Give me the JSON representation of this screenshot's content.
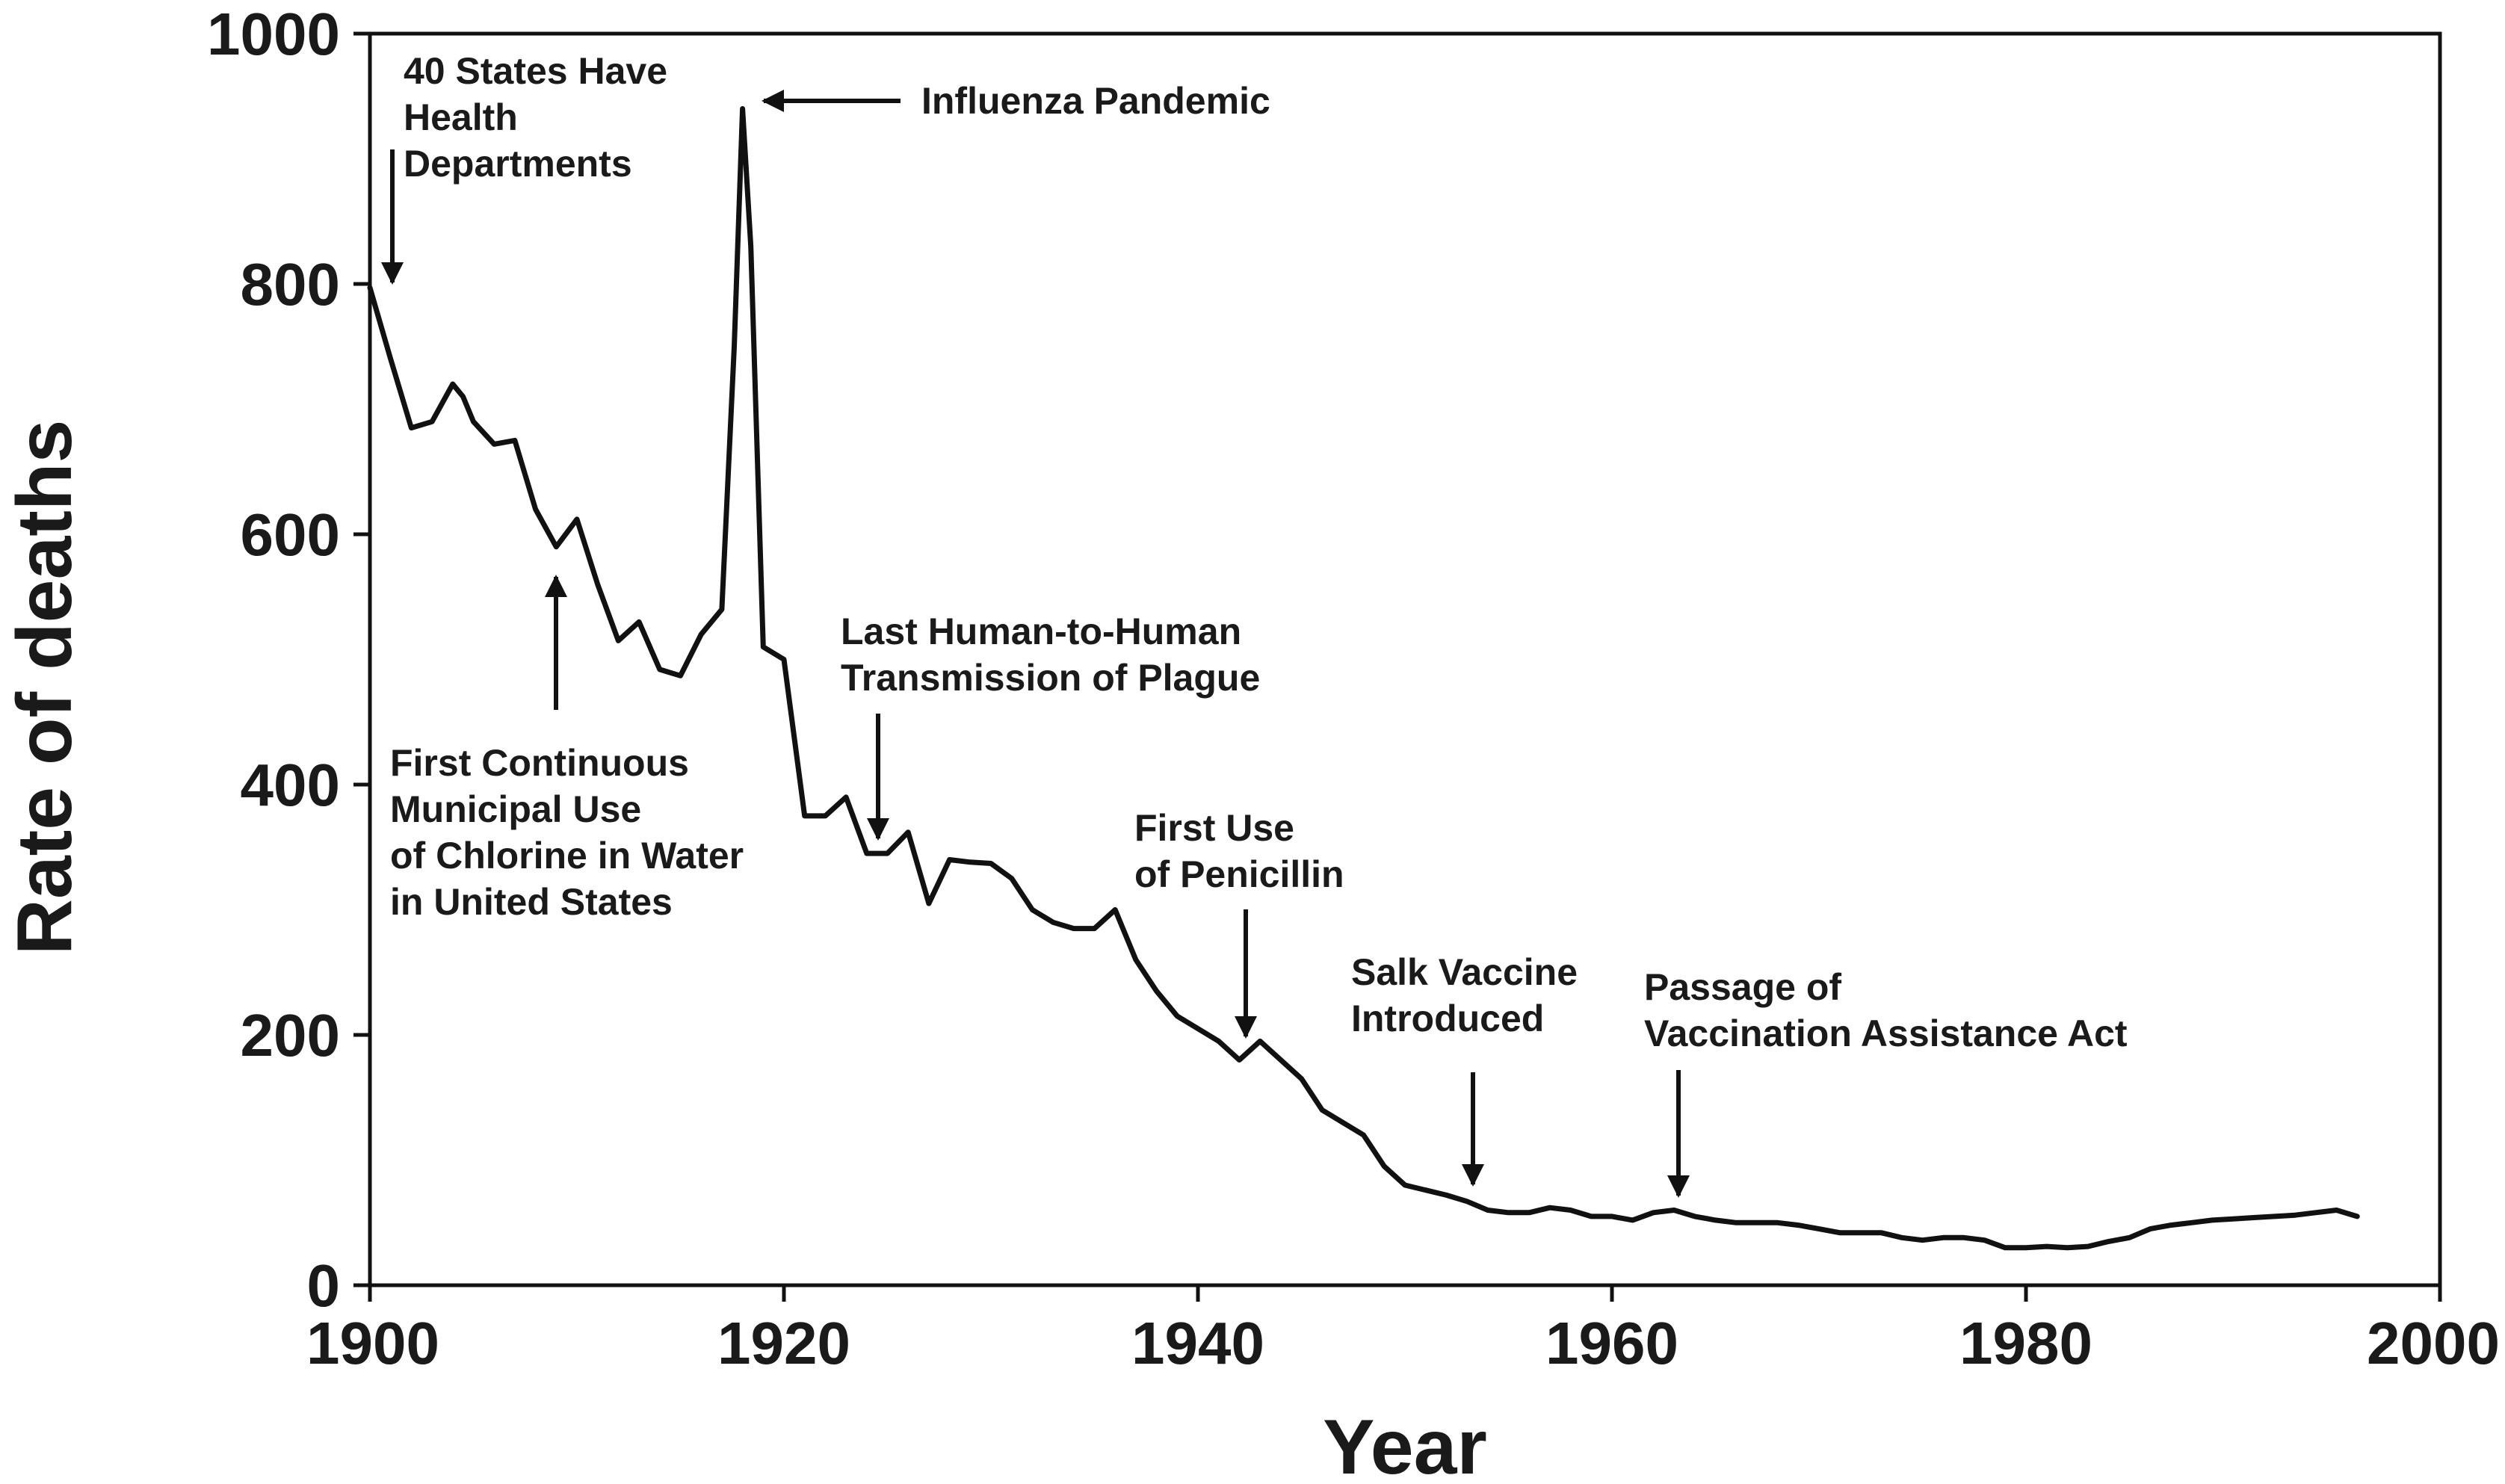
{
  "chart_data": {
    "type": "line",
    "title": "",
    "xlabel": "Year",
    "ylabel": "Rate of deaths",
    "xlim": [
      1900,
      2000
    ],
    "ylim": [
      0,
      1000
    ],
    "xticks": [
      1900,
      1920,
      1940,
      1960,
      1980,
      2000
    ],
    "yticks": [
      0,
      200,
      400,
      600,
      800,
      1000
    ],
    "grid": false,
    "legend": "none",
    "line_color": "#111111",
    "series": [
      {
        "x": [
          1900,
          1901,
          1902,
          1903,
          1904,
          1904.5,
          1905,
          1906,
          1907,
          1908,
          1909,
          1910,
          1911,
          1912,
          1913,
          1914,
          1915,
          1916,
          1917,
          1917.6,
          1918,
          1918.4,
          1919,
          1920,
          1921,
          1922,
          1923,
          1924,
          1925,
          1926,
          1927,
          1928,
          1929,
          1930,
          1931,
          1932,
          1933,
          1934,
          1935,
          1936,
          1937,
          1938,
          1939,
          1940,
          1941,
          1942,
          1943,
          1944,
          1945,
          1946,
          1947,
          1948,
          1949,
          1950,
          1951,
          1952,
          1953,
          1954,
          1955,
          1956,
          1957,
          1958,
          1959,
          1960,
          1961,
          1962,
          1963,
          1964,
          1965,
          1966,
          1967,
          1968,
          1969,
          1970,
          1971,
          1972,
          1973,
          1974,
          1975,
          1976,
          1977,
          1978,
          1979,
          1980,
          1981,
          1982,
          1983,
          1984,
          1985,
          1986,
          1987,
          1988,
          1989,
          1990,
          1991,
          1992,
          1993,
          1994,
          1995,
          1996
        ],
        "y": [
          797,
          740,
          685,
          690,
          720,
          710,
          690,
          672,
          675,
          620,
          590,
          612,
          560,
          515,
          530,
          492,
          487,
          520,
          540,
          750,
          940,
          830,
          510,
          500,
          375,
          375,
          390,
          345,
          345,
          362,
          305,
          340,
          338,
          337,
          325,
          300,
          290,
          285,
          285,
          300,
          260,
          235,
          215,
          205,
          195,
          180,
          195,
          180,
          165,
          140,
          130,
          120,
          95,
          80,
          76,
          72,
          67,
          60,
          58,
          58,
          62,
          60,
          55,
          55,
          52,
          58,
          60,
          55,
          52,
          50,
          50,
          50,
          48,
          45,
          42,
          42,
          42,
          38,
          36,
          38,
          38,
          36,
          30,
          30,
          31,
          30,
          31,
          35,
          38,
          45,
          48,
          50,
          52,
          53,
          54,
          55,
          56,
          58,
          60,
          55
        ]
      }
    ],
    "annotations": [
      {
        "lines": [
          "40 States Have",
          "Health",
          "Departments"
        ],
        "x": 1901
      },
      {
        "lines": [
          "Influenza Pandemic"
        ],
        "x": 1918.5
      },
      {
        "lines": [
          "First Continuous",
          "Municipal Use",
          "of Chlorine in Water",
          "in United States"
        ],
        "x": 1909
      },
      {
        "lines": [
          "Last Human-to-Human",
          "Transmission of Plague"
        ],
        "x": 1924.5
      },
      {
        "lines": [
          "First Use",
          "of Penicillin"
        ],
        "x": 1942
      },
      {
        "lines": [
          "Salk Vaccine",
          "Introduced"
        ],
        "x": 1953.5
      },
      {
        "lines": [
          "Passage of",
          "Vaccination Assistance Act"
        ],
        "x": 1963
      }
    ]
  }
}
